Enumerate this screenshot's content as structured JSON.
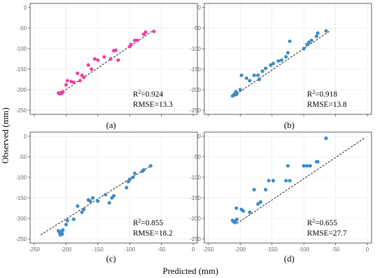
{
  "axes": {
    "xlabel": "Predicted (mm)",
    "ylabel": "Observed (mm)"
  },
  "colors": {
    "pink": "#e8439b",
    "blue": "#3a8cc4"
  },
  "chart_data": [
    {
      "type": "scatter",
      "panel": "(a)",
      "color": "pink",
      "stats": {
        "r2_prefix": "R",
        "r2_sup": "2",
        "r2_value": "=0.924",
        "rmse": "RMSE=13.3"
      },
      "xlim": [
        -250,
        0
      ],
      "ylim": [
        -250,
        0
      ],
      "xticks": [],
      "yticks": [
        0,
        -50,
        -100,
        -150,
        -200,
        -250
      ],
      "ref_line": [
        [
          -210,
          -210
        ],
        [
          -65,
          -58
        ]
      ],
      "points": [
        [
          -212,
          -208
        ],
        [
          -210,
          -210
        ],
        [
          -208,
          -207
        ],
        [
          -207,
          -209
        ],
        [
          -206,
          -206
        ],
        [
          -205,
          -205
        ],
        [
          -200,
          -188
        ],
        [
          -198,
          -178
        ],
        [
          -192,
          -180
        ],
        [
          -188,
          -182
        ],
        [
          -182,
          -160
        ],
        [
          -178,
          -178
        ],
        [
          -175,
          -165
        ],
        [
          -172,
          -170
        ],
        [
          -165,
          -140
        ],
        [
          -160,
          -150
        ],
        [
          -155,
          -125
        ],
        [
          -150,
          -128
        ],
        [
          -140,
          -120
        ],
        [
          -130,
          -125
        ],
        [
          -125,
          -105
        ],
        [
          -122,
          -104
        ],
        [
          -118,
          -128
        ],
        [
          -100,
          -95
        ],
        [
          -98,
          -90
        ],
        [
          -92,
          -80
        ],
        [
          -88,
          -80
        ],
        [
          -78,
          -65
        ],
        [
          -75,
          -60
        ],
        [
          -62,
          -58
        ]
      ]
    },
    {
      "type": "scatter",
      "panel": "(b)",
      "color": "blue",
      "stats": {
        "r2_prefix": "R",
        "r2_sup": "2",
        "r2_value": "=0.918",
        "rmse": "RMSE=13.8"
      },
      "xlim": [
        -250,
        0
      ],
      "ylim": [
        -250,
        0
      ],
      "xticks": [],
      "yticks": [
        0,
        -50,
        -100,
        -150,
        -200,
        -250
      ],
      "ref_line": [
        [
          -210,
          -215
        ],
        [
          -60,
          -58
        ]
      ],
      "points": [
        [
          -212,
          -215
        ],
        [
          -210,
          -213
        ],
        [
          -208,
          -210
        ],
        [
          -207,
          -205
        ],
        [
          -206,
          -212
        ],
        [
          -205,
          -208
        ],
        [
          -200,
          -200
        ],
        [
          -198,
          -165
        ],
        [
          -190,
          -172
        ],
        [
          -185,
          -178
        ],
        [
          -178,
          -165
        ],
        [
          -172,
          -165
        ],
        [
          -170,
          -175
        ],
        [
          -165,
          -155
        ],
        [
          -160,
          -148
        ],
        [
          -152,
          -140
        ],
        [
          -148,
          -136
        ],
        [
          -140,
          -130
        ],
        [
          -135,
          -128
        ],
        [
          -128,
          -120
        ],
        [
          -125,
          -110
        ],
        [
          -122,
          -82
        ],
        [
          -100,
          -100
        ],
        [
          -95,
          -90
        ],
        [
          -92,
          -85
        ],
        [
          -88,
          -80
        ],
        [
          -80,
          -70
        ],
        [
          -78,
          -62
        ],
        [
          -65,
          -57
        ]
      ]
    },
    {
      "type": "scatter",
      "panel": "(c)",
      "color": "blue",
      "stats": {
        "r2_prefix": "R",
        "r2_sup": "2",
        "r2_value": "=0.855",
        "rmse": "RMSE=18.2"
      },
      "xlim": [
        -250,
        0
      ],
      "ylim": [
        -250,
        0
      ],
      "xticks": [
        -250,
        -200,
        -150,
        -100,
        -50,
        0
      ],
      "yticks": [
        0,
        -50,
        -100,
        -150,
        -200,
        -250
      ],
      "ref_line": [
        [
          -240,
          -240
        ],
        [
          -65,
          -70
        ]
      ],
      "points": [
        [
          -212,
          -230
        ],
        [
          -210,
          -235
        ],
        [
          -209,
          -240
        ],
        [
          -207,
          -232
        ],
        [
          -206,
          -238
        ],
        [
          -205,
          -228
        ],
        [
          -200,
          -215
        ],
        [
          -198,
          -205
        ],
        [
          -188,
          -202
        ],
        [
          -182,
          -170
        ],
        [
          -175,
          -185
        ],
        [
          -172,
          -178
        ],
        [
          -165,
          -155
        ],
        [
          -162,
          -158
        ],
        [
          -158,
          -150
        ],
        [
          -150,
          -158
        ],
        [
          -138,
          -142
        ],
        [
          -132,
          -162
        ],
        [
          -128,
          -150
        ],
        [
          -125,
          -145
        ],
        [
          -105,
          -125
        ],
        [
          -102,
          -110
        ],
        [
          -100,
          -105
        ],
        [
          -95,
          -100
        ],
        [
          -92,
          -90
        ],
        [
          -80,
          -85
        ],
        [
          -78,
          -82
        ],
        [
          -67,
          -72
        ]
      ]
    },
    {
      "type": "scatter",
      "panel": "(d)",
      "color": "blue",
      "stats": {
        "r2_prefix": "R",
        "r2_sup": "2",
        "r2_value": "=0.655",
        "rmse": "RMSE=27.7"
      },
      "xlim": [
        -250,
        0
      ],
      "ylim": [
        -250,
        0
      ],
      "xticks": [
        -250,
        -200,
        -150,
        -100,
        -50,
        0
      ],
      "yticks": [
        0,
        -50,
        -100,
        -150,
        -200,
        -250
      ],
      "ref_line": [
        [
          -205,
          -212
        ],
        [
          -5,
          -5
        ]
      ],
      "points": [
        [
          -212,
          -205
        ],
        [
          -210,
          -208
        ],
        [
          -208,
          -210
        ],
        [
          -207,
          -206
        ],
        [
          -206,
          -175
        ],
        [
          -205,
          -202
        ],
        [
          -198,
          -178
        ],
        [
          -195,
          -182
        ],
        [
          -185,
          -185
        ],
        [
          -178,
          -130
        ],
        [
          -172,
          -165
        ],
        [
          -168,
          -160
        ],
        [
          -160,
          -130
        ],
        [
          -155,
          -108
        ],
        [
          -148,
          -108
        ],
        [
          -128,
          -108
        ],
        [
          -125,
          -72
        ],
        [
          -122,
          -108
        ],
        [
          -100,
          -72
        ],
        [
          -95,
          -72
        ],
        [
          -90,
          -72
        ],
        [
          -80,
          -62
        ],
        [
          -78,
          -62
        ],
        [
          -65,
          -5
        ]
      ]
    }
  ]
}
